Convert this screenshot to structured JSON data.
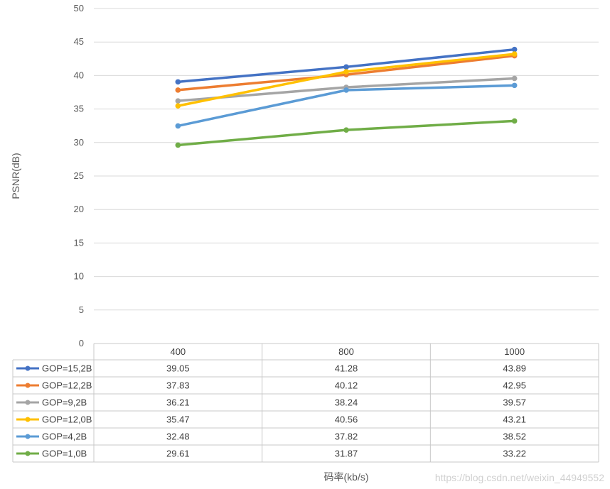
{
  "chart_data": {
    "type": "line",
    "title": "",
    "xlabel": "码率(kb/s)",
    "ylabel": "PSNR(dB)",
    "ylim": [
      0,
      50
    ],
    "yticks": [
      0,
      5,
      10,
      15,
      20,
      25,
      30,
      35,
      40,
      45,
      50
    ],
    "categories": [
      "400",
      "800",
      "1000"
    ],
    "grid": true,
    "legend": "data-table",
    "series": [
      {
        "name": "GOP=15,2B",
        "color": "#4472C4",
        "values": [
          39.05,
          41.28,
          43.89
        ]
      },
      {
        "name": "GOP=12,2B",
        "color": "#ED7D31",
        "values": [
          37.83,
          40.12,
          42.95
        ]
      },
      {
        "name": "GOP=9,2B",
        "color": "#A5A5A5",
        "values": [
          36.21,
          38.24,
          39.57
        ]
      },
      {
        "name": "GOP=12,0B",
        "color": "#FFC000",
        "values": [
          35.47,
          40.56,
          43.21
        ]
      },
      {
        "name": "GOP=4,2B",
        "color": "#5B9BD5",
        "values": [
          32.48,
          37.82,
          38.52
        ]
      },
      {
        "name": "GOP=1,0B",
        "color": "#70AD47",
        "values": [
          29.61,
          31.87,
          33.22
        ]
      }
    ]
  },
  "watermark": "https://blog.csdn.net/weixin_44949552"
}
